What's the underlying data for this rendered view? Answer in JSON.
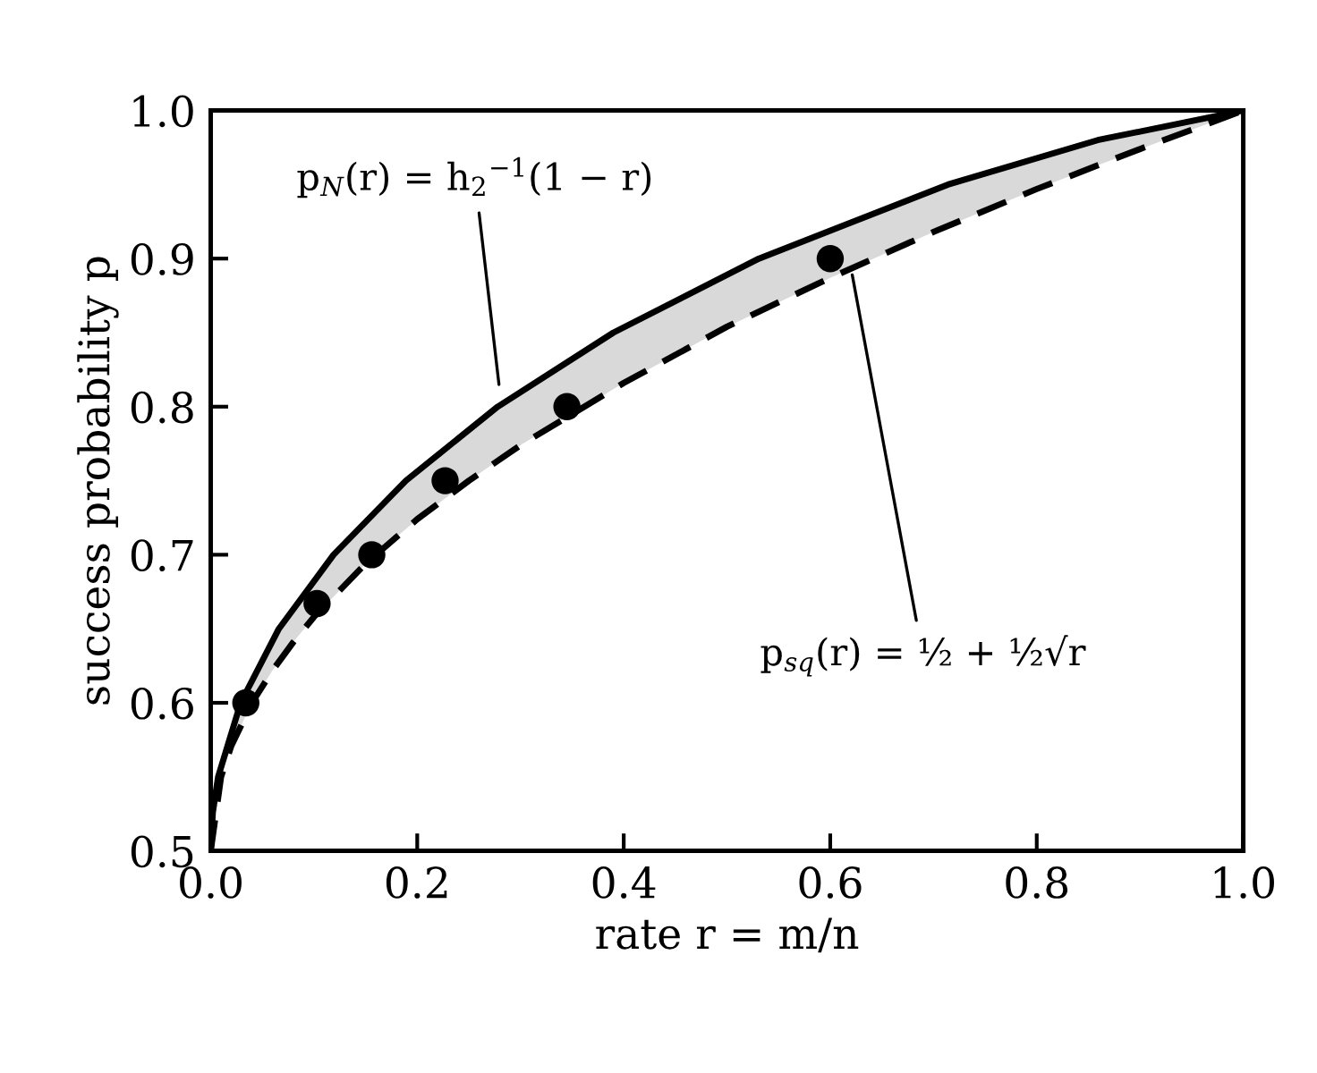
{
  "chart_data": {
    "type": "line",
    "xlabel": "rate r = m/n",
    "ylabel": "success probability p",
    "xlim": [
      0.0,
      1.0
    ],
    "ylim": [
      0.5,
      1.0
    ],
    "xticks": [
      {
        "value": 0.0,
        "label": "0.0"
      },
      0.2,
      0.4,
      0.6,
      0.8,
      {
        "value": 1.0,
        "label": "1.0"
      }
    ],
    "yticks": [
      0.5,
      0.6,
      0.7,
      0.8,
      0.9,
      {
        "value": 1.0,
        "label": "1.0"
      }
    ],
    "grid": false,
    "legend": false,
    "series": [
      {
        "type": "line",
        "line_style": "solid",
        "marker": "none",
        "color": "#000000",
        "x": [
          0,
          0.002,
          0.0072,
          0.029,
          0.066,
          0.119,
          0.189,
          0.278,
          0.39,
          0.531,
          0.714,
          0.859,
          1.0
        ],
        "values": [
          0.5,
          0.526,
          0.55,
          0.6,
          0.65,
          0.7,
          0.75,
          0.8,
          0.85,
          0.9,
          0.95,
          0.98,
          1.0
        ]
      },
      {
        "type": "line",
        "line_style": "dashed",
        "marker": "none",
        "color": "#000000",
        "x": [
          0,
          0.01,
          0.02,
          0.04,
          0.06,
          0.08,
          0.1,
          0.15,
          0.2,
          0.25,
          0.3,
          0.4,
          0.5,
          0.6,
          0.7,
          0.8,
          0.9,
          1.0
        ],
        "values": [
          0.5,
          0.55,
          0.571,
          0.6,
          0.622,
          0.641,
          0.658,
          0.694,
          0.724,
          0.75,
          0.774,
          0.816,
          0.854,
          0.887,
          0.918,
          0.947,
          0.974,
          1.0
        ]
      },
      {
        "type": "scatter",
        "marker": "circle",
        "color": "#000000",
        "x": [
          0.034,
          0.103,
          0.156,
          0.227,
          0.345,
          0.6
        ],
        "values": [
          0.6,
          0.667,
          0.7,
          0.75,
          0.8,
          0.9
        ]
      }
    ],
    "annotations": [
      {
        "text": "p$_{N}$(r) = h$_{2}$$^{−1}$(1 − r)",
        "x": 0.28,
        "y": 0.81
      },
      {
        "text": "p$_{sq}$(r) = ½ + ½√r",
        "x": 0.62,
        "y": 0.894
      }
    ]
  }
}
